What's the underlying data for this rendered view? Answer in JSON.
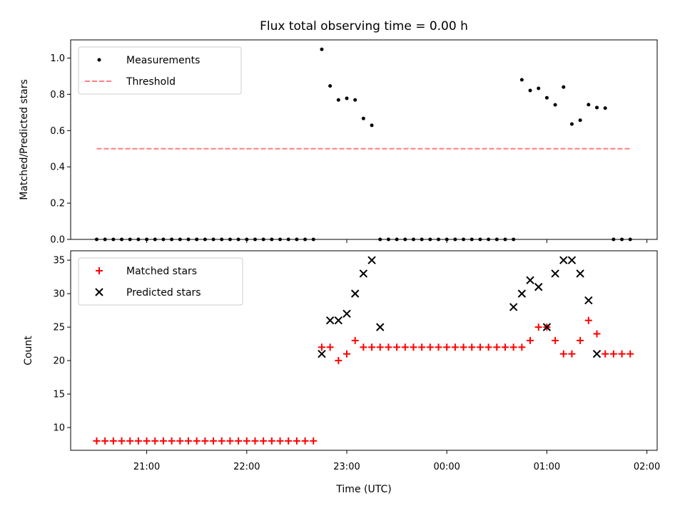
{
  "chart_data": [
    {
      "type": "scatter",
      "title": "Flux total observing time = 0.00 h",
      "xlabel": "",
      "ylabel": "Matched/Predicted stars",
      "ylim": [
        0,
        1.1
      ],
      "yticks": [
        "0.0",
        "0.2",
        "0.4",
        "0.6",
        "0.8",
        "1.0"
      ],
      "grid": false,
      "legend_location": "upper-left",
      "series": [
        {
          "name": "Measurements",
          "marker": "dot",
          "color": "#000000",
          "x": [
            "20:30",
            "20:35",
            "20:40",
            "20:45",
            "20:50",
            "20:55",
            "21:00",
            "21:05",
            "21:10",
            "21:15",
            "21:20",
            "21:25",
            "21:30",
            "21:35",
            "21:40",
            "21:45",
            "21:50",
            "21:55",
            "22:00",
            "22:05",
            "22:10",
            "22:15",
            "22:20",
            "22:25",
            "22:30",
            "22:35",
            "22:40",
            "22:45",
            "22:50",
            "22:55",
            "23:00",
            "23:05",
            "23:10",
            "23:15",
            "23:20",
            "23:25",
            "23:30",
            "23:35",
            "23:40",
            "23:45",
            "23:50",
            "23:55",
            "00:00",
            "00:05",
            "00:10",
            "00:15",
            "00:20",
            "00:25",
            "00:30",
            "00:35",
            "00:40",
            "00:45",
            "00:50",
            "00:55",
            "01:00",
            "01:05",
            "01:10",
            "01:15",
            "01:20",
            "01:25",
            "01:30",
            "01:35",
            "01:40",
            "01:45",
            "01:50"
          ],
          "y": [
            0,
            0,
            0,
            0,
            0,
            0,
            0,
            0,
            0,
            0,
            0,
            0,
            0,
            0,
            0,
            0,
            0,
            0,
            0,
            0,
            0,
            0,
            0,
            0,
            0,
            0,
            0,
            1.048,
            0.846,
            0.769,
            0.778,
            0.769,
            0.667,
            0.629,
            0,
            0,
            0,
            0,
            0,
            0,
            0,
            0,
            0,
            0,
            0,
            0,
            0,
            0,
            0,
            0,
            0,
            0.88,
            0.821,
            0.833,
            0.781,
            0.742,
            0.84,
            0.636,
            0.657,
            0.743,
            0.727,
            0.724,
            0,
            0,
            0
          ]
        },
        {
          "name": "Threshold",
          "marker": "dashed-line",
          "color": "#ff7f7f",
          "x": [
            "20:30",
            "01:50"
          ],
          "y": [
            0.5,
            0.5
          ]
        }
      ]
    },
    {
      "type": "scatter",
      "title": "",
      "xlabel": "Time (UTC)",
      "ylabel": "Count",
      "ylim": [
        6.6,
        36.4
      ],
      "yticks": [
        "10",
        "15",
        "20",
        "25",
        "30",
        "35"
      ],
      "xticks": [
        "21:00",
        "22:00",
        "23:00",
        "00:00",
        "01:00",
        "02:00"
      ],
      "grid": false,
      "legend_location": "upper-left",
      "series": [
        {
          "name": "Matched stars",
          "marker": "plus",
          "color": "#ff0000",
          "x": [
            "20:30",
            "20:35",
            "20:40",
            "20:45",
            "20:50",
            "20:55",
            "21:00",
            "21:05",
            "21:10",
            "21:15",
            "21:20",
            "21:25",
            "21:30",
            "21:35",
            "21:40",
            "21:45",
            "21:50",
            "21:55",
            "22:00",
            "22:05",
            "22:10",
            "22:15",
            "22:20",
            "22:25",
            "22:30",
            "22:35",
            "22:40",
            "22:45",
            "22:50",
            "22:55",
            "23:00",
            "23:05",
            "23:10",
            "23:15",
            "23:20",
            "23:25",
            "23:30",
            "23:35",
            "23:40",
            "23:45",
            "23:50",
            "23:55",
            "00:00",
            "00:05",
            "00:10",
            "00:15",
            "00:20",
            "00:25",
            "00:30",
            "00:35",
            "00:40",
            "00:45",
            "00:50",
            "00:55",
            "01:00",
            "01:05",
            "01:10",
            "01:15",
            "01:20",
            "01:25",
            "01:30",
            "01:35",
            "01:40",
            "01:45",
            "01:50"
          ],
          "y": [
            8,
            8,
            8,
            8,
            8,
            8,
            8,
            8,
            8,
            8,
            8,
            8,
            8,
            8,
            8,
            8,
            8,
            8,
            8,
            8,
            8,
            8,
            8,
            8,
            8,
            8,
            8,
            22,
            22,
            20,
            21,
            23,
            22,
            22,
            22,
            22,
            22,
            22,
            22,
            22,
            22,
            22,
            22,
            22,
            22,
            22,
            22,
            22,
            22,
            22,
            22,
            22,
            23,
            25,
            25,
            23,
            21,
            21,
            23,
            26,
            24,
            21,
            21,
            21,
            21
          ]
        },
        {
          "name": "Predicted stars",
          "marker": "x",
          "color": "#000000",
          "x": [
            "22:45",
            "22:50",
            "22:55",
            "23:00",
            "23:05",
            "23:10",
            "23:15",
            "23:20",
            "00:40",
            "00:45",
            "00:50",
            "00:55",
            "01:00",
            "01:05",
            "01:10",
            "01:15",
            "01:20",
            "01:25",
            "01:30"
          ],
          "y": [
            21,
            26,
            26,
            27,
            30,
            33,
            35,
            25,
            28,
            30,
            32,
            31,
            25,
            33,
            35,
            35,
            33,
            29,
            21
          ]
        }
      ]
    }
  ]
}
